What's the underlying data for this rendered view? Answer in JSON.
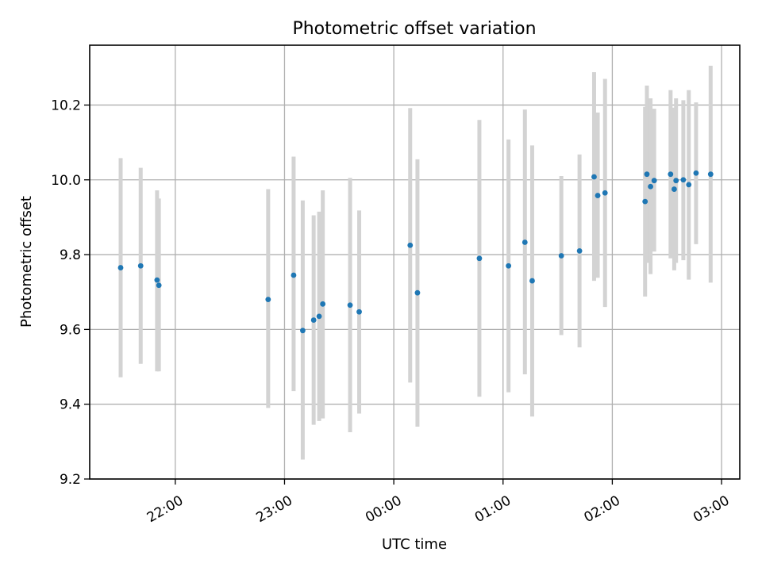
{
  "chart_data": {
    "type": "scatter",
    "title": "Photometric offset variation",
    "xlabel": "UTC time",
    "ylabel": "Photometric offset",
    "x_axis_type": "time",
    "xlim": [
      "21:13",
      "03:10"
    ],
    "ylim": [
      9.2,
      10.36
    ],
    "grid": true,
    "x_ticks": [
      {
        "time": "22:00",
        "label": "22:00"
      },
      {
        "time": "23:00",
        "label": "23:00"
      },
      {
        "time": "00:00",
        "label": "00:00"
      },
      {
        "time": "01:00",
        "label": "01:00"
      },
      {
        "time": "02:00",
        "label": "02:00"
      },
      {
        "time": "03:00",
        "label": "03:00"
      }
    ],
    "y_ticks": [
      {
        "value": 9.2,
        "label": "9.2"
      },
      {
        "value": 9.4,
        "label": "9.4"
      },
      {
        "value": 9.6,
        "label": "9.6"
      },
      {
        "value": 9.8,
        "label": "9.8"
      },
      {
        "value": 10.0,
        "label": "10.0"
      },
      {
        "value": 10.2,
        "label": "10.2"
      }
    ],
    "colors": {
      "points": "#1f77b4",
      "error_bars": "#d3d3d3"
    },
    "points": [
      {
        "time": "21:30",
        "y": 9.765,
        "low": 9.472,
        "high": 10.058
      },
      {
        "time": "21:41",
        "y": 9.77,
        "low": 9.508,
        "high": 10.032
      },
      {
        "time": "21:50",
        "y": 9.732,
        "low": 9.488,
        "high": 9.972
      },
      {
        "time": "21:51",
        "y": 9.718,
        "low": 9.488,
        "high": 9.95
      },
      {
        "time": "22:51",
        "y": 9.68,
        "low": 9.39,
        "high": 9.975
      },
      {
        "time": "23:05",
        "y": 9.745,
        "low": 9.435,
        "high": 10.062
      },
      {
        "time": "23:10",
        "y": 9.597,
        "low": 9.252,
        "high": 9.945
      },
      {
        "time": "23:16",
        "y": 9.625,
        "low": 9.345,
        "high": 9.905
      },
      {
        "time": "23:19",
        "y": 9.635,
        "low": 9.355,
        "high": 9.915
      },
      {
        "time": "23:21",
        "y": 9.668,
        "low": 9.362,
        "high": 9.972
      },
      {
        "time": "23:36",
        "y": 9.665,
        "low": 9.325,
        "high": 10.005
      },
      {
        "time": "23:41",
        "y": 9.647,
        "low": 9.375,
        "high": 9.918
      },
      {
        "time": "00:09",
        "y": 9.825,
        "low": 9.458,
        "high": 10.192
      },
      {
        "time": "00:13",
        "y": 9.698,
        "low": 9.34,
        "high": 10.055
      },
      {
        "time": "00:47",
        "y": 9.79,
        "low": 9.42,
        "high": 10.16
      },
      {
        "time": "01:03",
        "y": 9.77,
        "low": 9.432,
        "high": 10.108
      },
      {
        "time": "01:12",
        "y": 9.833,
        "low": 9.48,
        "high": 10.188
      },
      {
        "time": "01:16",
        "y": 9.73,
        "low": 9.367,
        "high": 10.092
      },
      {
        "time": "01:32",
        "y": 9.797,
        "low": 9.585,
        "high": 10.01
      },
      {
        "time": "01:42",
        "y": 9.81,
        "low": 9.552,
        "high": 10.068
      },
      {
        "time": "01:50",
        "y": 10.008,
        "low": 9.73,
        "high": 10.288
      },
      {
        "time": "01:52",
        "y": 9.958,
        "low": 9.738,
        "high": 10.18
      },
      {
        "time": "01:56",
        "y": 9.965,
        "low": 9.66,
        "high": 10.27
      },
      {
        "time": "02:18",
        "y": 9.942,
        "low": 9.688,
        "high": 10.195
      },
      {
        "time": "02:19",
        "y": 10.015,
        "low": 9.778,
        "high": 10.252
      },
      {
        "time": "02:21",
        "y": 9.982,
        "low": 9.748,
        "high": 10.218
      },
      {
        "time": "02:23",
        "y": 9.998,
        "low": 9.808,
        "high": 10.19
      },
      {
        "time": "02:32",
        "y": 10.015,
        "low": 9.79,
        "high": 10.24
      },
      {
        "time": "02:34",
        "y": 9.975,
        "low": 9.758,
        "high": 10.193
      },
      {
        "time": "02:35",
        "y": 9.998,
        "low": 9.778,
        "high": 10.218
      },
      {
        "time": "02:39",
        "y": 10.0,
        "low": 9.785,
        "high": 10.213
      },
      {
        "time": "02:42",
        "y": 9.987,
        "low": 9.733,
        "high": 10.24
      },
      {
        "time": "02:46",
        "y": 10.018,
        "low": 9.828,
        "high": 10.207
      },
      {
        "time": "02:54",
        "y": 10.015,
        "low": 9.725,
        "high": 10.305
      }
    ]
  }
}
